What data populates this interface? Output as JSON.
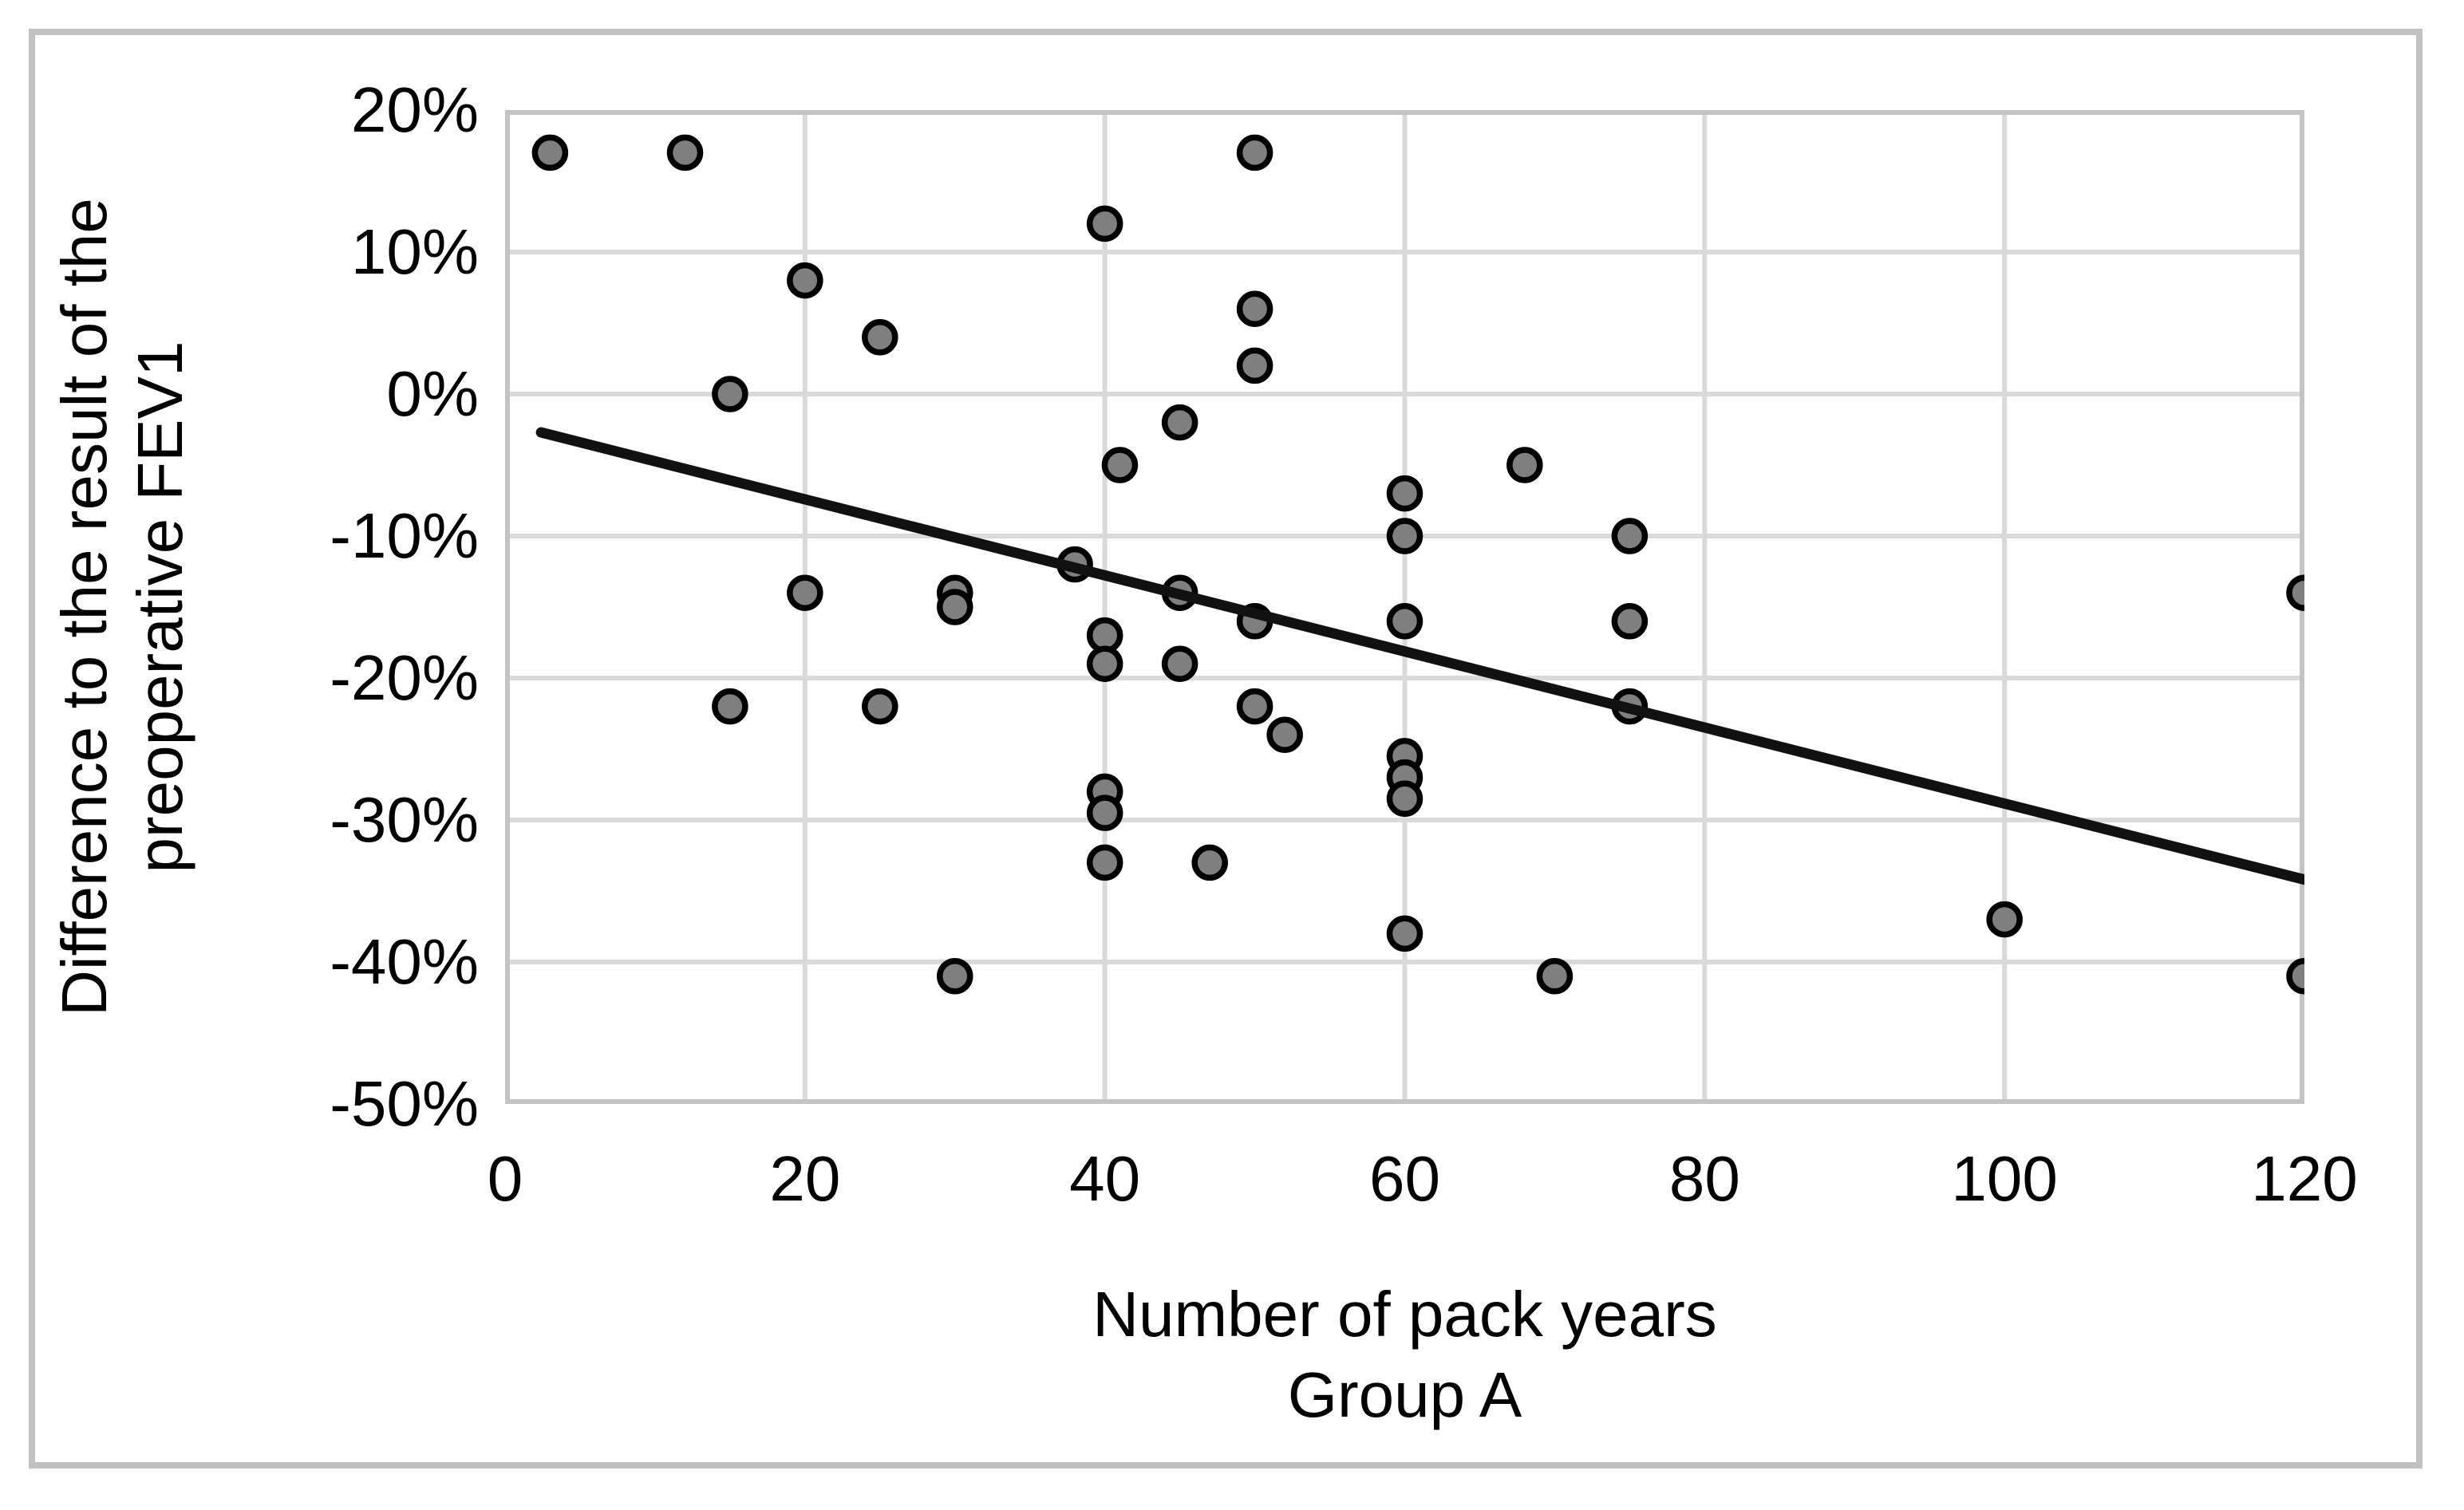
{
  "chart_data": {
    "type": "scatter",
    "title": "",
    "xlabel_line1": "Number of pack years",
    "xlabel_line2": "Group A",
    "ylabel_line1": "Difference to the result of the",
    "ylabel_line2": "preoperative FEV1",
    "xlim": [
      0,
      120
    ],
    "ylim": [
      -50,
      20
    ],
    "grid": true,
    "legend_position": "none",
    "xticks": {
      "values": [
        0,
        20,
        40,
        60,
        80,
        100,
        120
      ],
      "labels": [
        "0",
        "20",
        "40",
        "60",
        "80",
        "100",
        "120"
      ]
    },
    "yticks": {
      "values": [
        20,
        10,
        0,
        -10,
        -20,
        -30,
        -40,
        -50
      ],
      "labels": [
        "20%",
        "10%",
        "0%",
        "-10%",
        "-20%",
        "-30%",
        "-40%",
        "-50%"
      ]
    },
    "points": [
      [
        3,
        17
      ],
      [
        12,
        17
      ],
      [
        50,
        17
      ],
      [
        40,
        12
      ],
      [
        20,
        8
      ],
      [
        50,
        6
      ],
      [
        25,
        4
      ],
      [
        50,
        2
      ],
      [
        15,
        0
      ],
      [
        45,
        -2
      ],
      [
        41,
        -5
      ],
      [
        68,
        -5
      ],
      [
        60,
        -7
      ],
      [
        60,
        -10
      ],
      [
        75,
        -10
      ],
      [
        38,
        -12
      ],
      [
        20,
        -14
      ],
      [
        30,
        -14
      ],
      [
        45,
        -14
      ],
      [
        120,
        -14
      ],
      [
        30,
        -15
      ],
      [
        50,
        -16
      ],
      [
        60,
        -16
      ],
      [
        75,
        -16
      ],
      [
        40,
        -17
      ],
      [
        40,
        -19
      ],
      [
        45,
        -19
      ],
      [
        15,
        -22
      ],
      [
        25,
        -22
      ],
      [
        50,
        -22
      ],
      [
        75,
        -22
      ],
      [
        52,
        -24
      ],
      [
        60,
        -25.5
      ],
      [
        60,
        -27
      ],
      [
        40,
        -28
      ],
      [
        60,
        -28.5
      ],
      [
        40,
        -29.5
      ],
      [
        40,
        -33
      ],
      [
        47,
        -33
      ],
      [
        100,
        -37
      ],
      [
        60,
        -38
      ],
      [
        30,
        -41
      ],
      [
        70,
        -41
      ],
      [
        120,
        -41
      ]
    ],
    "trendline": {
      "x1": 2.4,
      "y1": -2.7,
      "x2": 120,
      "y2": -34.2
    },
    "colors": {
      "marker_fill": "#7f7f7f",
      "marker_stroke": "#000000",
      "trendline": "#111111",
      "gridline": "#d9d9d9",
      "plot_border": "#c3c3c3",
      "figure_frame": "#c1c1c1",
      "text": "#000000",
      "background": "#ffffff"
    }
  }
}
